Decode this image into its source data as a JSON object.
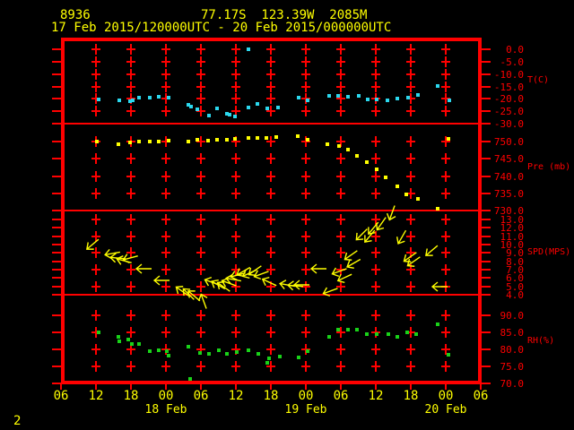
{
  "header": {
    "station_id": "8936",
    "location": "77.17S  123.39W  2085M",
    "period": "17 Feb 2015/120000UTC - 20 Feb 2015/000000UTC"
  },
  "footer": {
    "page": "2"
  },
  "colors": {
    "background": "#000000",
    "frame_red": "#ff0000",
    "axis_red": "#ff0000",
    "text_yellow": "#ffff00",
    "temperature_cyan": "#2bd8ee",
    "pressure_yellow": "#ffff00",
    "wind_yellow": "#ffff00",
    "humidity_green": "#19d219"
  },
  "x_axis": {
    "start": "17 Feb 2015 0600UTC",
    "end": "20 Feb 2015 0600UTC",
    "hour_labels": [
      "06",
      "12",
      "18",
      "00",
      "06",
      "12",
      "18",
      "00",
      "06",
      "12",
      "18",
      "00",
      "06"
    ],
    "label_hours": [
      0,
      6,
      12,
      18,
      24,
      30,
      36,
      42,
      48,
      54,
      60,
      66,
      72
    ],
    "date_labels": [
      {
        "label": "18 Feb",
        "hour": 18
      },
      {
        "label": "19 Feb",
        "hour": 42
      },
      {
        "label": "20 Feb",
        "hour": 66
      }
    ]
  },
  "panels": [
    {
      "key": "T",
      "unit": "T(C)",
      "unit_value": -12.6,
      "tick_labels": [
        "0.0",
        "-5.0",
        "-10.0",
        "-15.0",
        "-20.0",
        "-25.0",
        "-30.0"
      ],
      "tick_values": [
        0,
        -5,
        -10,
        -15,
        -20,
        -25,
        -30
      ],
      "grid_values": [
        0,
        -5,
        -10,
        -15,
        -20,
        -25
      ]
    },
    {
      "key": "P",
      "unit": "Pre (mb)",
      "unit_value": 742.5,
      "tick_labels": [
        "750.0",
        "745.0",
        "740.0",
        "735.0",
        "730.0"
      ],
      "tick_values": [
        750,
        745,
        740,
        735,
        730
      ],
      "grid_values": [
        750,
        745,
        740,
        735
      ]
    },
    {
      "key": "S",
      "unit": "SPD(MPS)",
      "unit_value": 9,
      "tick_labels": [
        "13.0",
        "12.0",
        "11.0",
        "10.0",
        "9.0",
        "8.0",
        "7.0",
        "6.0",
        "5.0",
        "4.0"
      ],
      "tick_values": [
        13,
        12,
        11,
        10,
        9,
        8,
        7,
        6,
        5,
        4
      ],
      "grid_values": [
        13,
        11,
        9,
        7,
        5
      ]
    },
    {
      "key": "R",
      "unit": "RH(%)",
      "unit_value": 82.5,
      "tick_labels": [
        "90.0",
        "85.0",
        "80.0",
        "75.0",
        "70.0"
      ],
      "tick_values": [
        90,
        85,
        80,
        75,
        70
      ],
      "grid_values": [
        90,
        85,
        80,
        75
      ]
    }
  ],
  "chart_data": [
    {
      "type": "scatter",
      "name": "temperature",
      "ylabel": "T(C)",
      "ylim": [
        -30,
        0
      ],
      "x_unit": "hours since 17 Feb 2015 0600UTC",
      "points": [
        [
          6.5,
          -20.2
        ],
        [
          10.0,
          -20.6
        ],
        [
          11.8,
          -21.0
        ],
        [
          12.3,
          -20.6
        ],
        [
          13.4,
          -19.5
        ],
        [
          15.2,
          -19.5
        ],
        [
          16.8,
          -19.2
        ],
        [
          18.5,
          -19.5
        ],
        [
          21.8,
          -22.4
        ],
        [
          22.3,
          -23.1
        ],
        [
          23.4,
          -24.2
        ],
        [
          25.4,
          -26.7
        ],
        [
          26.8,
          -23.9
        ],
        [
          28.5,
          -26.0
        ],
        [
          28.9,
          -26.4
        ],
        [
          29.8,
          -27.1
        ],
        [
          32.2,
          0.0
        ],
        [
          32.2,
          -23.5
        ],
        [
          33.7,
          -22.0
        ],
        [
          35.4,
          -23.9
        ],
        [
          37.2,
          -23.5
        ],
        [
          40.8,
          -19.5
        ],
        [
          42.3,
          -20.6
        ],
        [
          46.0,
          -18.8
        ],
        [
          47.5,
          -18.8
        ],
        [
          49.2,
          -19.2
        ],
        [
          51.1,
          -18.8
        ],
        [
          52.6,
          -20.2
        ],
        [
          54.2,
          -20.2
        ],
        [
          56.0,
          -20.6
        ],
        [
          57.7,
          -19.9
        ],
        [
          59.5,
          -19.5
        ],
        [
          61.2,
          -18.4
        ],
        [
          64.6,
          -14.8
        ],
        [
          66.6,
          -20.6
        ]
      ]
    },
    {
      "type": "scatter",
      "name": "pressure",
      "ylabel": "Pre (mb)",
      "ylim": [
        730,
        755
      ],
      "x_unit": "hours since 17 Feb 2015 0600UTC",
      "points": [
        [
          6.2,
          750.0
        ],
        [
          9.8,
          749.2
        ],
        [
          11.8,
          749.7
        ],
        [
          13.4,
          750.0
        ],
        [
          15.2,
          750.0
        ],
        [
          16.8,
          750.0
        ],
        [
          18.5,
          750.3
        ],
        [
          21.8,
          750.0
        ],
        [
          23.4,
          750.5
        ],
        [
          25.2,
          750.3
        ],
        [
          26.8,
          750.5
        ],
        [
          28.5,
          750.5
        ],
        [
          29.8,
          750.8
        ],
        [
          32.2,
          751.0
        ],
        [
          33.7,
          751.0
        ],
        [
          35.2,
          751.0
        ],
        [
          36.9,
          751.3
        ],
        [
          40.6,
          751.6
        ],
        [
          42.3,
          750.5
        ],
        [
          45.7,
          749.2
        ],
        [
          47.7,
          748.7
        ],
        [
          49.2,
          747.7
        ],
        [
          50.8,
          745.8
        ],
        [
          52.5,
          744.0
        ],
        [
          54.2,
          742.0
        ],
        [
          55.7,
          739.6
        ],
        [
          57.7,
          737.0
        ],
        [
          59.2,
          734.7
        ],
        [
          61.2,
          733.4
        ],
        [
          64.6,
          730.5
        ],
        [
          66.5,
          750.8
        ]
      ]
    },
    {
      "type": "wind_vectors",
      "name": "wind_speed_direction",
      "ylabel": "SPD(MPS)",
      "ylim": [
        4,
        14
      ],
      "x_unit": "hours since 17 Feb 2015 0600UTC",
      "angle_convention": "0 = arrow points left (-x); positive degrees rotate clockwise on screen",
      "points": [
        [
          5.4,
          10.0,
          -40
        ],
        [
          8.8,
          8.9,
          -10
        ],
        [
          9.7,
          8.4,
          5
        ],
        [
          10.8,
          8.1,
          15
        ],
        [
          11.8,
          8.4,
          -15
        ],
        [
          14.2,
          7.1,
          0
        ],
        [
          17.2,
          5.7,
          0
        ],
        [
          20.8,
          4.4,
          35
        ],
        [
          21.8,
          4.1,
          45
        ],
        [
          22.8,
          3.9,
          40
        ],
        [
          24.5,
          3.3,
          70
        ],
        [
          25.8,
          5.5,
          20
        ],
        [
          26.9,
          5.2,
          30
        ],
        [
          27.8,
          5.0,
          35
        ],
        [
          28.8,
          5.4,
          20
        ],
        [
          29.5,
          5.8,
          10
        ],
        [
          30.3,
          6.4,
          -15
        ],
        [
          31.2,
          6.8,
          -30
        ],
        [
          32.3,
          6.6,
          -25
        ],
        [
          33.2,
          6.9,
          -35
        ],
        [
          34.3,
          6.5,
          -20
        ],
        [
          35.7,
          5.5,
          25
        ],
        [
          38.8,
          5.2,
          10
        ],
        [
          40.2,
          5.1,
          5
        ],
        [
          41.2,
          5.2,
          0
        ],
        [
          44.2,
          7.1,
          0
        ],
        [
          46.2,
          4.4,
          -20
        ],
        [
          47.7,
          6.8,
          -20
        ],
        [
          48.6,
          6.0,
          -25
        ],
        [
          49.7,
          8.7,
          -35
        ],
        [
          50.2,
          7.8,
          -30
        ],
        [
          51.5,
          11.2,
          -45
        ],
        [
          52.9,
          11.0,
          -50
        ],
        [
          53.5,
          11.9,
          -50
        ],
        [
          54.9,
          12.5,
          -55
        ],
        [
          56.8,
          13.8,
          -70
        ],
        [
          58.5,
          10.9,
          -60
        ],
        [
          59.8,
          8.5,
          -35
        ],
        [
          60.5,
          8.0,
          -35
        ],
        [
          63.5,
          9.3,
          -40
        ],
        [
          64.9,
          5.0,
          0
        ]
      ]
    },
    {
      "type": "scatter",
      "name": "relative_humidity",
      "ylabel": "RH(%)",
      "ylim": [
        70,
        90
      ],
      "x_unit": "hours since 17 Feb 2015 0600UTC",
      "points": [
        [
          6.5,
          84.9
        ],
        [
          9.8,
          83.6
        ],
        [
          10.0,
          82.5
        ],
        [
          11.5,
          82.8
        ],
        [
          12.2,
          81.7
        ],
        [
          13.4,
          81.7
        ],
        [
          15.2,
          79.4
        ],
        [
          16.8,
          79.7
        ],
        [
          18.2,
          79.4
        ],
        [
          18.5,
          78.1
        ],
        [
          21.8,
          80.7
        ],
        [
          22.2,
          71.3
        ],
        [
          23.8,
          78.9
        ],
        [
          25.4,
          78.6
        ],
        [
          27.1,
          79.7
        ],
        [
          28.5,
          78.6
        ],
        [
          30.2,
          79.1
        ],
        [
          32.2,
          79.7
        ],
        [
          33.8,
          78.6
        ],
        [
          35.4,
          76.0
        ],
        [
          35.7,
          77.3
        ],
        [
          37.5,
          77.8
        ],
        [
          40.8,
          77.6
        ],
        [
          42.3,
          79.4
        ],
        [
          46.0,
          83.6
        ],
        [
          47.5,
          85.7
        ],
        [
          49.2,
          85.7
        ],
        [
          50.8,
          85.7
        ],
        [
          52.5,
          84.6
        ],
        [
          54.2,
          84.6
        ],
        [
          56.2,
          84.6
        ],
        [
          57.7,
          83.6
        ],
        [
          59.4,
          84.9
        ],
        [
          60.9,
          84.6
        ],
        [
          64.6,
          87.5
        ],
        [
          66.5,
          78.4
        ]
      ]
    }
  ]
}
